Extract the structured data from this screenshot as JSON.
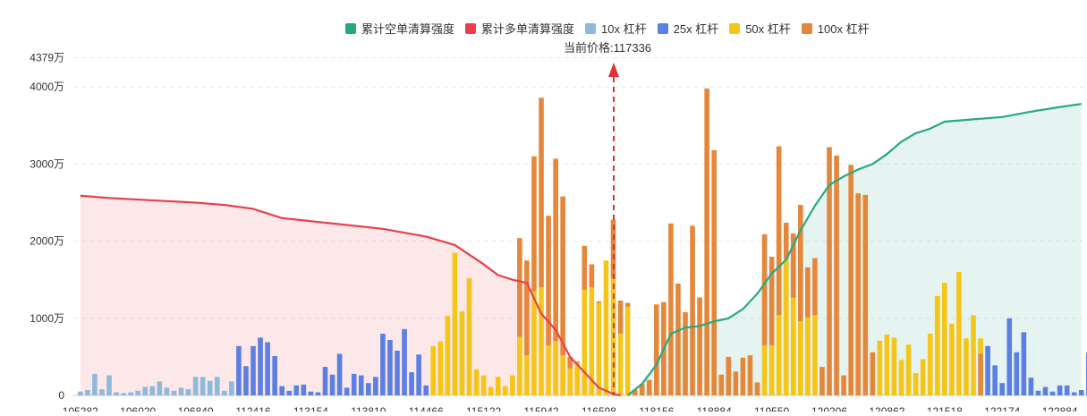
{
  "legend": {
    "items": [
      {
        "label": "累计空单清算强度",
        "color": "#26a887"
      },
      {
        "label": "累计多单清算强度",
        "color": "#e8404c"
      },
      {
        "label": "10x 杠杆",
        "color": "#8fb8dd"
      },
      {
        "label": "25x 杠杆",
        "color": "#5b7fe3"
      },
      {
        "label": "50x 杠杆",
        "color": "#f5c518"
      },
      {
        "label": "100x 杠杆",
        "color": "#e5873a"
      }
    ]
  },
  "price_label": "当前价格:117336",
  "chart_data": {
    "type": "bar",
    "current_price": 117336,
    "y_ticks": [
      "0",
      "1000万",
      "2000万",
      "3000万",
      "4000万",
      "4379万"
    ],
    "y_values": [
      0,
      1000,
      2000,
      3000,
      4000,
      4379
    ],
    "ylim": [
      0,
      4379
    ],
    "x_tick_labels": [
      "105282",
      "106020",
      "106840",
      "112416",
      "113154",
      "113810",
      "114466",
      "115122",
      "115942",
      "116598",
      "118156",
      "118884",
      "119550",
      "120206",
      "120862",
      "121518",
      "122174",
      "122884"
    ],
    "x_tick_positions": [
      0,
      8,
      16,
      24,
      32,
      40,
      48,
      56,
      64,
      72,
      80,
      88,
      96,
      104,
      112,
      120,
      128,
      136
    ],
    "colors": {
      "10x": "#8fb8dd",
      "25x": "#5b7fe3",
      "50x": "#f5c518",
      "100x": "#e5873a",
      "short": "#26a887",
      "long": "#e8404c",
      "arrow": "#e0303a"
    },
    "bars": [
      {
        "t": "10x",
        "v": 50
      },
      {
        "t": "10x",
        "v": 70
      },
      {
        "t": "10x",
        "v": 280
      },
      {
        "t": "10x",
        "v": 80
      },
      {
        "t": "10x",
        "v": 260
      },
      {
        "t": "10x",
        "v": 40
      },
      {
        "t": "10x",
        "v": 30
      },
      {
        "t": "10x",
        "v": 40
      },
      {
        "t": "10x",
        "v": 60
      },
      {
        "t": "10x",
        "v": 110
      },
      {
        "t": "10x",
        "v": 120
      },
      {
        "t": "10x",
        "v": 180
      },
      {
        "t": "10x",
        "v": 100
      },
      {
        "t": "10x",
        "v": 60
      },
      {
        "t": "10x",
        "v": 100
      },
      {
        "t": "10x",
        "v": 80
      },
      {
        "t": "10x",
        "v": 240
      },
      {
        "t": "10x",
        "v": 240
      },
      {
        "t": "10x",
        "v": 190
      },
      {
        "t": "10x",
        "v": 240
      },
      {
        "t": "10x",
        "v": 60
      },
      {
        "t": "10x",
        "v": 180
      },
      {
        "t": "25x",
        "v": 640
      },
      {
        "t": "25x",
        "v": 380
      },
      {
        "t": "25x",
        "v": 640
      },
      {
        "t": "25x",
        "v": 750
      },
      {
        "t": "25x",
        "v": 690
      },
      {
        "t": "25x",
        "v": 510
      },
      {
        "t": "25x",
        "v": 120
      },
      {
        "t": "25x",
        "v": 60
      },
      {
        "t": "25x",
        "v": 130
      },
      {
        "t": "25x",
        "v": 140
      },
      {
        "t": "25x",
        "v": 50
      },
      {
        "t": "25x",
        "v": 40
      },
      {
        "t": "25x",
        "v": 370
      },
      {
        "t": "25x",
        "v": 270
      },
      {
        "t": "25x",
        "v": 540
      },
      {
        "t": "25x",
        "v": 100
      },
      {
        "t": "25x",
        "v": 280
      },
      {
        "t": "25x",
        "v": 260
      },
      {
        "t": "25x",
        "v": 160
      },
      {
        "t": "25x",
        "v": 240
      },
      {
        "t": "25x",
        "v": 800
      },
      {
        "t": "25x",
        "v": 720
      },
      {
        "t": "25x",
        "v": 580
      },
      {
        "t": "25x",
        "v": 860
      },
      {
        "t": "25x",
        "v": 300
      },
      {
        "t": "25x",
        "v": 530
      },
      {
        "t": "25x",
        "v": 130
      },
      {
        "t": "50x",
        "v": 640
      },
      {
        "t": "50x",
        "v": 700
      },
      {
        "t": "50x",
        "v": 1030
      },
      {
        "t": "50x",
        "v": 1850
      },
      {
        "t": "50x",
        "v": 1090
      },
      {
        "t": "50x",
        "v": 1520
      },
      {
        "t": "50x",
        "v": 340
      },
      {
        "t": "50x",
        "v": 260
      },
      {
        "t": "50x",
        "v": 110
      },
      {
        "t": "50x",
        "v": 240
      },
      {
        "t": "50x",
        "v": 120
      },
      {
        "t": "50x",
        "v": 260
      },
      {
        "t": "100x",
        "v": 2040,
        "y": 760
      },
      {
        "t": "100x",
        "v": 1750,
        "y": 520
      },
      {
        "t": "100x",
        "v": 3100,
        "y": 1350
      },
      {
        "t": "100x",
        "v": 3860,
        "y": 1400
      },
      {
        "t": "100x",
        "v": 2330,
        "y": 650
      },
      {
        "t": "100x",
        "v": 3070,
        "y": 700
      },
      {
        "t": "100x",
        "v": 2580,
        "y": 520
      },
      {
        "t": "100x",
        "v": 500,
        "y": 350
      },
      {
        "t": "100x",
        "v": 440,
        "y": 420
      },
      {
        "t": "100x",
        "v": 1940,
        "y": 1370
      },
      {
        "t": "100x",
        "v": 1700,
        "y": 1400
      },
      {
        "t": "100x",
        "v": 1220,
        "y": 1200
      },
      {
        "t": "100x",
        "v": 1660,
        "y": 1750
      },
      {
        "t": "100x",
        "v": 2280,
        "y": 1520
      },
      {
        "t": "100x",
        "v": 1230,
        "y": 800
      },
      {
        "t": "100x",
        "v": 1200,
        "y": 1150
      },
      {
        "t": "100x",
        "v": 70
      },
      {
        "t": "100x",
        "v": 150
      },
      {
        "t": "100x",
        "v": 200
      },
      {
        "t": "100x",
        "v": 1180
      },
      {
        "t": "100x",
        "v": 1210
      },
      {
        "t": "100x",
        "v": 2230
      },
      {
        "t": "100x",
        "v": 1450
      },
      {
        "t": "100x",
        "v": 1080
      },
      {
        "t": "100x",
        "v": 2200
      },
      {
        "t": "100x",
        "v": 1270
      },
      {
        "t": "100x",
        "v": 3980
      },
      {
        "t": "100x",
        "v": 3180
      },
      {
        "t": "100x",
        "v": 270
      },
      {
        "t": "100x",
        "v": 500
      },
      {
        "t": "100x",
        "v": 310
      },
      {
        "t": "100x",
        "v": 490
      },
      {
        "t": "100x",
        "v": 520
      },
      {
        "t": "100x",
        "v": 170
      },
      {
        "t": "100x",
        "v": 2090,
        "y": 650
      },
      {
        "t": "100x",
        "v": 1800,
        "y": 650
      },
      {
        "t": "100x",
        "v": 3230,
        "y": 1040
      },
      {
        "t": "100x",
        "v": 2240,
        "y": 1770
      },
      {
        "t": "100x",
        "v": 2100,
        "y": 1270
      },
      {
        "t": "100x",
        "v": 2470,
        "y": 960
      },
      {
        "t": "100x",
        "v": 1660,
        "y": 1010
      },
      {
        "t": "100x",
        "v": 1780,
        "y": 1040
      },
      {
        "t": "100x",
        "v": 370
      },
      {
        "t": "100x",
        "v": 3220
      },
      {
        "t": "100x",
        "v": 3110
      },
      {
        "t": "100x",
        "v": 260
      },
      {
        "t": "100x",
        "v": 2990
      },
      {
        "t": "100x",
        "v": 2620
      },
      {
        "t": "100x",
        "v": 2600
      },
      {
        "t": "100x",
        "v": 560
      },
      {
        "t": "50x",
        "v": 710
      },
      {
        "t": "50x",
        "v": 790
      },
      {
        "t": "50x",
        "v": 750
      },
      {
        "t": "50x",
        "v": 460
      },
      {
        "t": "50x",
        "v": 660
      },
      {
        "t": "50x",
        "v": 290
      },
      {
        "t": "50x",
        "v": 470
      },
      {
        "t": "50x",
        "v": 800
      },
      {
        "t": "50x",
        "v": 1290
      },
      {
        "t": "50x",
        "v": 1460
      },
      {
        "t": "50x",
        "v": 930
      },
      {
        "t": "50x",
        "v": 1600
      },
      {
        "t": "50x",
        "v": 740
      },
      {
        "t": "50x",
        "v": 1040
      },
      {
        "t": "50x",
        "v": 740,
        "y": 540
      },
      {
        "t": "25x",
        "v": 640
      },
      {
        "t": "25x",
        "v": 390
      },
      {
        "t": "25x",
        "v": 160
      },
      {
        "t": "25x",
        "v": 1000
      },
      {
        "t": "25x",
        "v": 560
      },
      {
        "t": "25x",
        "v": 820
      },
      {
        "t": "25x",
        "v": 230
      },
      {
        "t": "25x",
        "v": 60
      },
      {
        "t": "25x",
        "v": 110
      },
      {
        "t": "25x",
        "v": 50
      },
      {
        "t": "25x",
        "v": 130
      },
      {
        "t": "25x",
        "v": 130
      },
      {
        "t": "25x",
        "v": 40
      },
      {
        "t": "25x",
        "v": 70
      },
      {
        "t": "25x",
        "v": 550
      },
      {
        "t": "25x",
        "v": 410
      },
      {
        "t": "25x",
        "v": 180
      },
      {
        "t": "25x",
        "v": 310
      },
      {
        "t": "25x",
        "v": 260
      },
      {
        "t": "25x",
        "v": 150
      },
      {
        "t": "25x",
        "v": 250
      },
      {
        "t": "25x",
        "v": 130
      },
      {
        "t": "25x",
        "v": 490
      }
    ],
    "long_curve": [
      [
        0,
        2590
      ],
      [
        4,
        2560
      ],
      [
        8,
        2540
      ],
      [
        16,
        2500
      ],
      [
        20,
        2470
      ],
      [
        24,
        2420
      ],
      [
        28,
        2300
      ],
      [
        32,
        2260
      ],
      [
        36,
        2220
      ],
      [
        42,
        2160
      ],
      [
        48,
        2060
      ],
      [
        52,
        1950
      ],
      [
        56,
        1700
      ],
      [
        58,
        1560
      ],
      [
        60,
        1500
      ],
      [
        62,
        1460
      ],
      [
        64,
        1060
      ],
      [
        66,
        850
      ],
      [
        68,
        500
      ],
      [
        70,
        300
      ],
      [
        72,
        100
      ],
      [
        74,
        20
      ],
      [
        75,
        0
      ]
    ],
    "short_curve": [
      [
        76,
        0
      ],
      [
        78,
        150
      ],
      [
        80,
        400
      ],
      [
        82,
        800
      ],
      [
        84,
        880
      ],
      [
        86,
        900
      ],
      [
        88,
        960
      ],
      [
        90,
        1000
      ],
      [
        92,
        1120
      ],
      [
        94,
        1320
      ],
      [
        96,
        1580
      ],
      [
        98,
        1760
      ],
      [
        100,
        2140
      ],
      [
        102,
        2460
      ],
      [
        104,
        2730
      ],
      [
        106,
        2840
      ],
      [
        108,
        2930
      ],
      [
        110,
        3000
      ],
      [
        112,
        3130
      ],
      [
        114,
        3290
      ],
      [
        116,
        3400
      ],
      [
        118,
        3460
      ],
      [
        120,
        3550
      ],
      [
        124,
        3580
      ],
      [
        128,
        3610
      ],
      [
        132,
        3680
      ],
      [
        136,
        3740
      ],
      [
        139,
        3780
      ]
    ]
  }
}
